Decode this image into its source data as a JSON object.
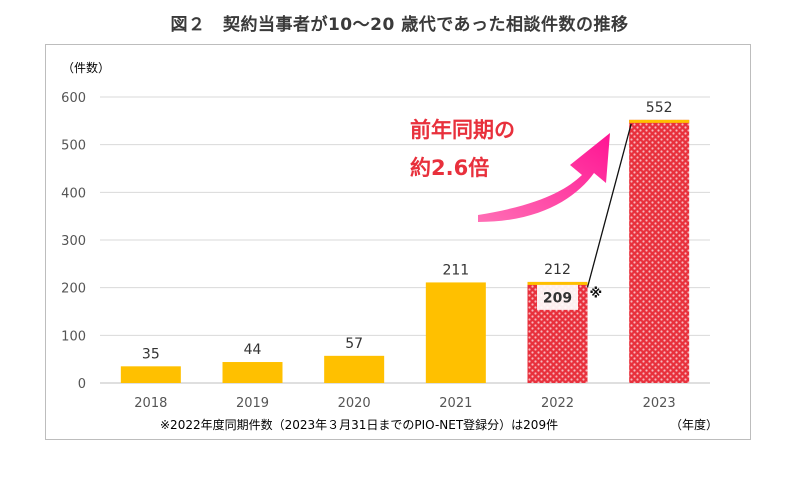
{
  "chart_data": {
    "type": "bar",
    "title": "図２　契約当事者が10～20 歳代であった相談件数の推移",
    "ylabel": "（件数）",
    "xlabel": "（年度）",
    "ylim": [
      0,
      600
    ],
    "yticks": [
      0,
      100,
      200,
      300,
      400,
      500,
      600
    ],
    "categories": [
      "2018",
      "2019",
      "2020",
      "2021",
      "2022",
      "2023"
    ],
    "values": [
      35,
      44,
      57,
      211,
      212,
      552
    ],
    "value_labels": [
      "35",
      "44",
      "57",
      "211",
      "212",
      "552"
    ],
    "highlighted": [
      false,
      false,
      false,
      false,
      true,
      true
    ],
    "comparison": {
      "category": "2022",
      "value": 209,
      "label": "209",
      "marker": "※"
    },
    "annotation": {
      "line1": "前年同期の",
      "line2": "約2.6倍"
    },
    "footnote": "※2022年度同期件数（2023年３月31日までのPIO-NET登録分）は209件",
    "colors": {
      "bar": "#FFC000",
      "highlight": "#E8303C",
      "highlight_pattern": "#F7B7BD",
      "annotation_text": "#E8303C",
      "arrow": "#FF1493",
      "grid": "#D9D9D9"
    }
  }
}
